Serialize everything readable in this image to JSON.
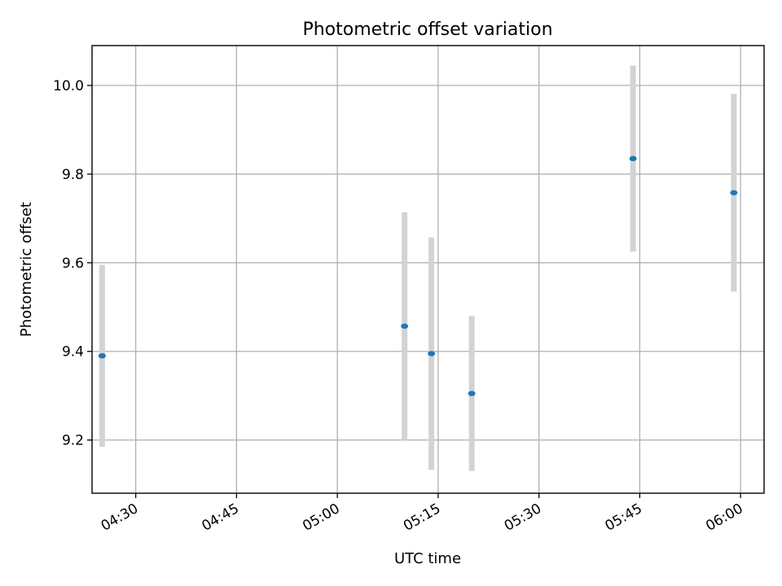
{
  "chart_data": {
    "type": "scatter",
    "title": "Photometric offset variation",
    "xlabel": "UTC time",
    "ylabel": "Photometric offset",
    "x_ticks": [
      "04:30",
      "04:45",
      "05:00",
      "05:15",
      "05:30",
      "05:45",
      "06:00"
    ],
    "y_ticks": [
      "9.2",
      "9.4",
      "9.6",
      "9.8",
      "10.0"
    ],
    "xlim": [
      "04:23:30",
      "06:03:30"
    ],
    "ylim": [
      9.08,
      10.09
    ],
    "grid": true,
    "series": [
      {
        "marker_color": "#1f77b4",
        "errorbar_color": "#d3d3d3",
        "points": [
          {
            "x": "04:25",
            "y": 9.39,
            "yerr": 0.205
          },
          {
            "x": "05:10",
            "y": 9.457,
            "yerr": 0.257
          },
          {
            "x": "05:14",
            "y": 9.395,
            "yerr": 0.262
          },
          {
            "x": "05:20",
            "y": 9.305,
            "yerr": 0.175
          },
          {
            "x": "05:44",
            "y": 9.835,
            "yerr": 0.21
          },
          {
            "x": "05:59",
            "y": 9.758,
            "yerr": 0.223
          }
        ]
      }
    ]
  }
}
